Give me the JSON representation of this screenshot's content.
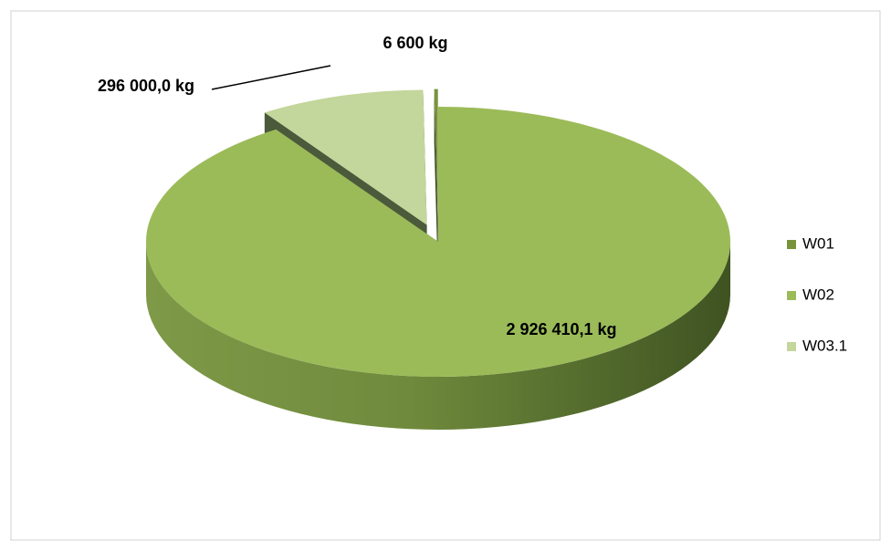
{
  "chart_data": {
    "type": "pie",
    "categories": [
      "W01",
      "W02",
      "W03.1"
    ],
    "values": [
      6600,
      2926410.1,
      296000
    ],
    "value_labels": [
      "6 600 kg",
      "2 926 410,1 kg",
      "296 000,0 kg"
    ],
    "colors": [
      "#77933c",
      "#9bbb59",
      "#c3d69b"
    ],
    "legend": "right"
  }
}
